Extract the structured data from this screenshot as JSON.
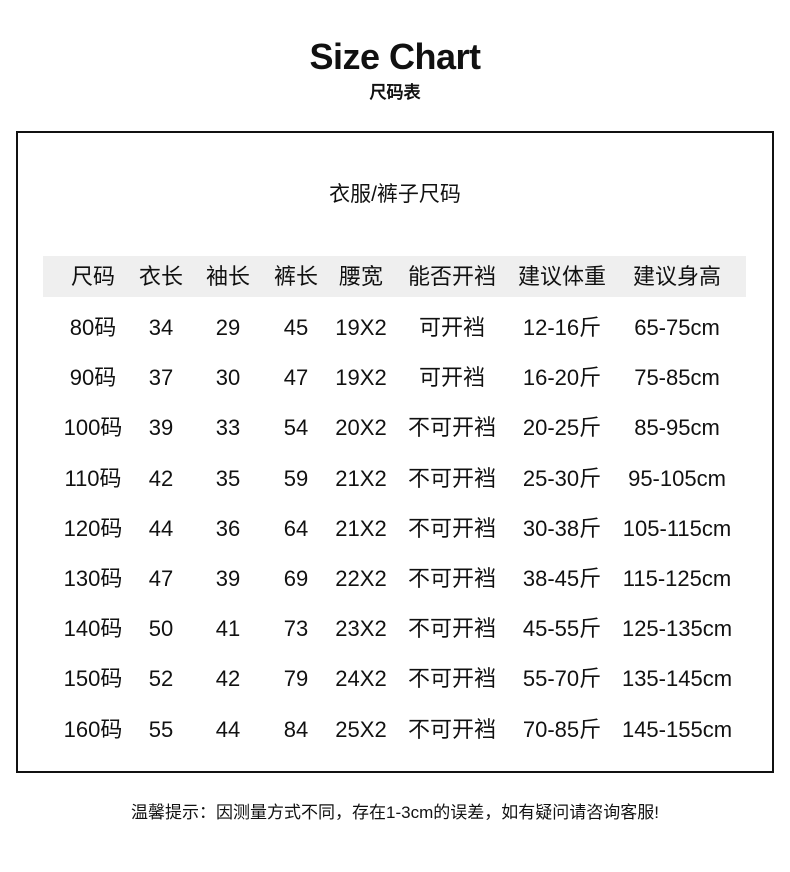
{
  "header": {
    "title": "Size Chart",
    "subtitle": "尺码表"
  },
  "table": {
    "caption": "衣服/裤子尺码",
    "columns": [
      "尺码",
      "衣长",
      "袖长",
      "裤长",
      "腰宽",
      "能否开裆",
      "建议体重",
      "建议身高"
    ],
    "rows": [
      [
        "80码",
        "34",
        "29",
        "45",
        "19X2",
        "可开裆",
        "12-16斤",
        "65-75cm"
      ],
      [
        "90码",
        "37",
        "30",
        "47",
        "19X2",
        "可开裆",
        "16-20斤",
        "75-85cm"
      ],
      [
        "100码",
        "39",
        "33",
        "54",
        "20X2",
        "不可开裆",
        "20-25斤",
        "85-95cm"
      ],
      [
        "110码",
        "42",
        "35",
        "59",
        "21X2",
        "不可开裆",
        "25-30斤",
        "95-105cm"
      ],
      [
        "120码",
        "44",
        "36",
        "64",
        "21X2",
        "不可开裆",
        "30-38斤",
        "105-115cm"
      ],
      [
        "130码",
        "47",
        "39",
        "69",
        "22X2",
        "不可开裆",
        "38-45斤",
        "115-125cm"
      ],
      [
        "140码",
        "50",
        "41",
        "73",
        "23X2",
        "不可开裆",
        "45-55斤",
        "125-135cm"
      ],
      [
        "150码",
        "52",
        "42",
        "79",
        "24X2",
        "不可开裆",
        "55-70斤",
        "135-145cm"
      ],
      [
        "160码",
        "55",
        "44",
        "84",
        "25X2",
        "不可开裆",
        "70-85斤",
        "145-155cm"
      ]
    ]
  },
  "footer": {
    "note": "温馨提示：因测量方式不同，存在1-3cm的误差，如有疑问请咨询客服!"
  },
  "colors": {
    "header_bg": "#efefef",
    "border": "#111111"
  }
}
